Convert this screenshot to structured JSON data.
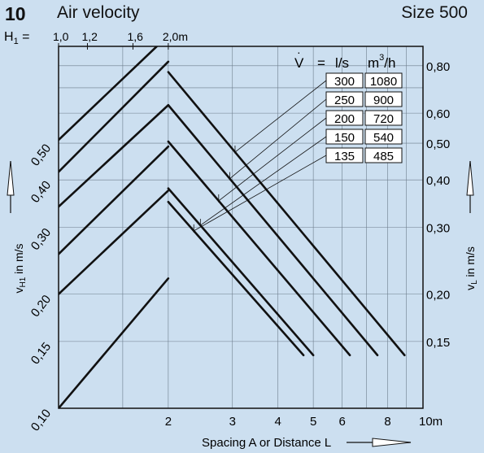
{
  "figure_number": "10",
  "title": "Air velocity",
  "size_label": "Size 500",
  "h1_label": "H",
  "h1_sub": "1",
  "h1_equals": "=",
  "top_ticks": [
    {
      "label": "1,0",
      "value": 1.0
    },
    {
      "label": "1,2",
      "value": 1.2
    },
    {
      "label": "1,6",
      "value": 1.6
    },
    {
      "label": "2,0m",
      "value": 2.0
    }
  ],
  "xlabel": "Spacing A or Distance L",
  "left_ylabel_main": "v",
  "left_ylabel_sub": "H1",
  "left_ylabel_rest": " in m/s",
  "right_ylabel_main": "v",
  "right_ylabel_sub": "L",
  "right_ylabel_rest": " in m/s",
  "flow_header": {
    "v": "V",
    "eq": "=",
    "ls": "l/s",
    "m3h_base": "m",
    "m3h_exp": "3",
    "m3h_tail": "/h"
  },
  "chart_data": {
    "type": "line",
    "x_scale": "log",
    "y_scale": "log",
    "xlim": [
      1,
      10
    ],
    "ylim": [
      0.1,
      0.9
    ],
    "x_ticks": [
      {
        "label": "2",
        "value": 2
      },
      {
        "label": "3",
        "value": 3
      },
      {
        "label": "4",
        "value": 4
      },
      {
        "label": "5",
        "value": 5
      },
      {
        "label": "6",
        "value": 6
      },
      {
        "label": "8",
        "value": 8
      },
      {
        "label": "10m",
        "value": 10
      }
    ],
    "left_y_ticks": [
      {
        "label": "0,10",
        "value": 0.1
      },
      {
        "label": "0,15",
        "value": 0.15
      },
      {
        "label": "0,20",
        "value": 0.2
      },
      {
        "label": "0,30",
        "value": 0.3
      },
      {
        "label": "0,40",
        "value": 0.4
      },
      {
        "label": "0,50",
        "value": 0.5
      }
    ],
    "right_y_ticks": [
      {
        "label": "0,15",
        "value": 0.15
      },
      {
        "label": "0,20",
        "value": 0.2
      },
      {
        "label": "0,30",
        "value": 0.3
      },
      {
        "label": "0,40",
        "value": 0.4
      },
      {
        "label": "0,50",
        "value": 0.5
      },
      {
        "label": "0,60",
        "value": 0.6
      },
      {
        "label": "0,80",
        "value": 0.8
      }
    ],
    "series": [
      {
        "name": "300 l/s",
        "ls": "300",
        "m3h": "1080",
        "rising": [
          [
            1.0,
            0.51
          ],
          [
            1.86,
            0.9
          ]
        ],
        "falling": [
          [
            2.0,
            0.77
          ],
          [
            8.9,
            0.138
          ]
        ]
      },
      {
        "name": "250 l/s",
        "ls": "250",
        "m3h": "900",
        "rising": [
          [
            1.0,
            0.42
          ],
          [
            2.0,
            0.82
          ]
        ],
        "falling": [
          [
            2.0,
            0.63
          ],
          [
            7.5,
            0.138
          ]
        ]
      },
      {
        "name": "200 l/s",
        "ls": "200",
        "m3h": "720",
        "rising": [
          [
            1.0,
            0.34
          ],
          [
            2.0,
            0.63
          ]
        ],
        "falling": [
          [
            2.0,
            0.505
          ],
          [
            6.3,
            0.138
          ]
        ]
      },
      {
        "name": "150 l/s",
        "ls": "150",
        "m3h": "540",
        "rising": [
          [
            1.0,
            0.255
          ],
          [
            2.0,
            0.49
          ]
        ],
        "falling": [
          [
            2.0,
            0.38
          ],
          [
            5.0,
            0.138
          ]
        ]
      },
      {
        "name": "135 l/s",
        "ls": "135",
        "m3h": "485",
        "rising": [
          [
            1.0,
            0.2
          ],
          [
            2.0,
            0.375
          ]
        ],
        "falling": [
          [
            2.0,
            0.35
          ],
          [
            4.7,
            0.138
          ]
        ]
      },
      {
        "name": "",
        "ls": "",
        "m3h": "",
        "rising": [
          [
            1.0,
            0.1
          ],
          [
            2.0,
            0.22
          ]
        ],
        "falling": []
      }
    ],
    "grid": true
  }
}
